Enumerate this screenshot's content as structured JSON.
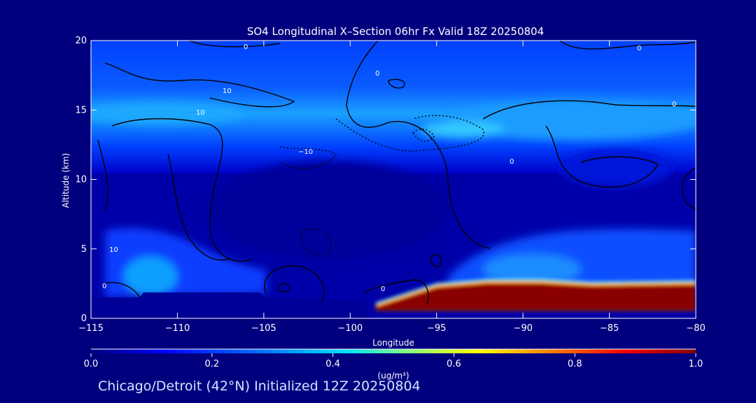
{
  "chart_data": {
    "type": "heatmap",
    "title": "SO4 Longitudinal X–Section 06hr  Fx Valid 18Z 20250804",
    "xlabel": "Longitude",
    "ylabel": "Altitude (km)",
    "xlim": [
      -115,
      -80
    ],
    "ylim": [
      0,
      20
    ],
    "x_ticks": [
      -115,
      -110,
      -105,
      -100,
      -95,
      -90,
      -85,
      -80
    ],
    "x_tick_labels": [
      "−115",
      "−110",
      "−105",
      "−100",
      "−95",
      "−90",
      "−85",
      "−80"
    ],
    "y_ticks": [
      0,
      5,
      10,
      15,
      20
    ],
    "y_tick_labels": [
      "0",
      "5",
      "10",
      "15",
      "20"
    ],
    "colorbar": {
      "label": "(ug/m³)",
      "range": [
        0.0,
        1.0
      ],
      "ticks": [
        0.0,
        0.2,
        0.4,
        0.6,
        0.8,
        1.0
      ],
      "tick_labels": [
        "0.0",
        "0.2",
        "0.4",
        "0.6",
        "0.8",
        "1.0"
      ],
      "colors": [
        "#00007f",
        "#0000ff",
        "#0080ff",
        "#00e0ff",
        "#80ff80",
        "#ffff00",
        "#ff8000",
        "#ff0000",
        "#7f0000"
      ]
    },
    "contour_labels": [
      "0",
      "0",
      "10",
      "10",
      "−10",
      "0",
      "0",
      "0",
      "0",
      "0",
      "10"
    ],
    "high_concentration_region": {
      "lon_range": [
        -98.5,
        -80
      ],
      "alt_top_km": [
        0.8,
        2.2,
        2.5,
        2.5,
        2.3,
        2.4
      ],
      "lons": [
        -98.5,
        -95,
        -92,
        -89,
        -86,
        -80
      ],
      "value": 1.0
    },
    "upper_layer_value": 0.3,
    "mid_layer_value": 0.05
  },
  "footer": {
    "text": "Chicago/Detroit (42°N) Initialized 12Z 20250804"
  }
}
